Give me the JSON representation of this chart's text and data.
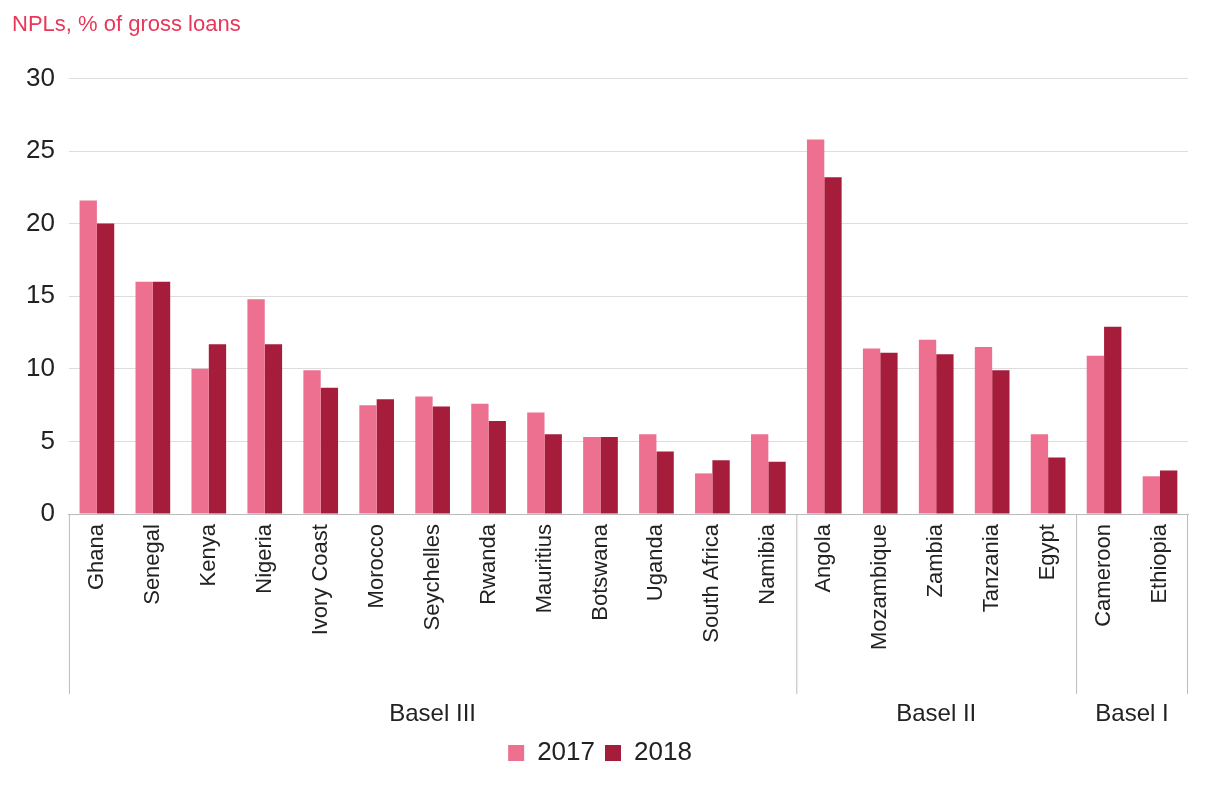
{
  "chart_data": {
    "type": "bar",
    "title": "NPLs, % of gross loans",
    "categories": [
      "Ghana",
      "Senegal",
      "Kenya",
      "Nigeria",
      "Ivory Coast",
      "Morocco",
      "Seychelles",
      "Rwanda",
      "Mauritius",
      "Botswana",
      "Uganda",
      "South Africa",
      "Namibia",
      "Angola",
      "Mozambique",
      "Zambia",
      "Tanzania",
      "Egypt",
      "Cameroon",
      "Ethiopia"
    ],
    "series": [
      {
        "name": "2017",
        "color": "#ee7090",
        "values": [
          21.6,
          16.0,
          10.0,
          14.8,
          9.9,
          7.5,
          8.1,
          7.6,
          7.0,
          5.3,
          5.5,
          2.8,
          5.5,
          25.8,
          11.4,
          12.0,
          11.5,
          5.5,
          10.9,
          2.6
        ]
      },
      {
        "name": "2018",
        "color": "#a51d3b",
        "values": [
          20.0,
          16.0,
          11.7,
          11.7,
          8.7,
          7.9,
          7.4,
          6.4,
          5.5,
          5.3,
          4.3,
          3.7,
          3.6,
          23.2,
          11.1,
          11.0,
          9.9,
          3.9,
          12.9,
          3.0
        ]
      }
    ],
    "ylim": [
      0,
      30
    ],
    "yticks": [
      0,
      5,
      10,
      15,
      20,
      25,
      30
    ],
    "grid": "y",
    "legend": "bottom",
    "annotations": [
      "Basel III",
      "Basel II",
      "Basel I"
    ]
  }
}
